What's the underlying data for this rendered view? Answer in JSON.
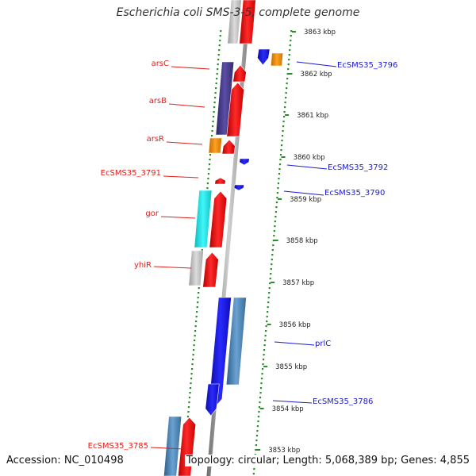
{
  "title": "Escherichia coli SMS-3-5, complete genome",
  "footer": {
    "accession": "Accession: NC_010498",
    "summary": "Topology: circular; Length: 5,068,389 bp; Genes: 4,855"
  },
  "scale": {
    "unit": "kbp",
    "ticks": [
      "3863 kbp",
      "3862 kbp",
      "3861 kbp",
      "3860 kbp",
      "3859 kbp",
      "3858 kbp",
      "3857 kbp",
      "3856 kbp",
      "3855 kbp",
      "3854 kbp",
      "3853 kbp"
    ]
  },
  "left_labels": [
    "arsC",
    "arsB",
    "arsR",
    "EcSMS35_3791",
    "gor",
    "yhiR",
    "EcSMS35_3785"
  ],
  "right_labels": [
    "EcSMS35_3796",
    "EcSMS35_3792",
    "EcSMS35_3790",
    "prlC",
    "EcSMS35_3786"
  ],
  "colors": {
    "label_left": "#e0201c",
    "label_right": "#1a1acf",
    "backbone": "#8a8a8a",
    "grid_dots": "#2c8a2c",
    "gene_red": "#ff0000",
    "gene_blue": "#1414e6",
    "gene_purple": "#4b3f8f",
    "gene_steel": "#4f86b8",
    "gene_orange": "#f08c10",
    "gene_cyan": "#18e6ea",
    "gene_gray": "#bcbcbc"
  }
}
